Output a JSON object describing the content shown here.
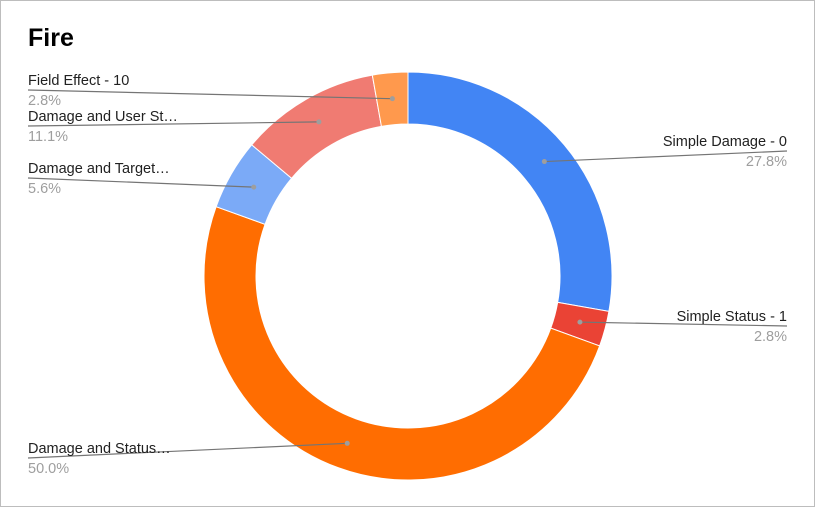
{
  "chart_data": {
    "type": "pie",
    "donut": true,
    "title": "Fire",
    "slices": [
      {
        "label": "Simple Damage - 0",
        "value": 27.8,
        "percent_label": "27.8%",
        "color": "#4285f4"
      },
      {
        "label": "Simple Status - 1",
        "value": 2.8,
        "percent_label": "2.8%",
        "color": "#ea4335"
      },
      {
        "label": "Damage and Status…",
        "value": 50.0,
        "percent_label": "50.0%",
        "color": "#ff6d01"
      },
      {
        "label": "Damage and Target…",
        "value": 5.6,
        "percent_label": "5.6%",
        "color": "#7baaf7"
      },
      {
        "label": "Damage and User St…",
        "value": 11.1,
        "percent_label": "11.1%",
        "color": "#f07b72"
      },
      {
        "label": "Field Effect - 10",
        "value": 2.8,
        "percent_label": "2.8%",
        "color": "#ff994d"
      }
    ]
  }
}
